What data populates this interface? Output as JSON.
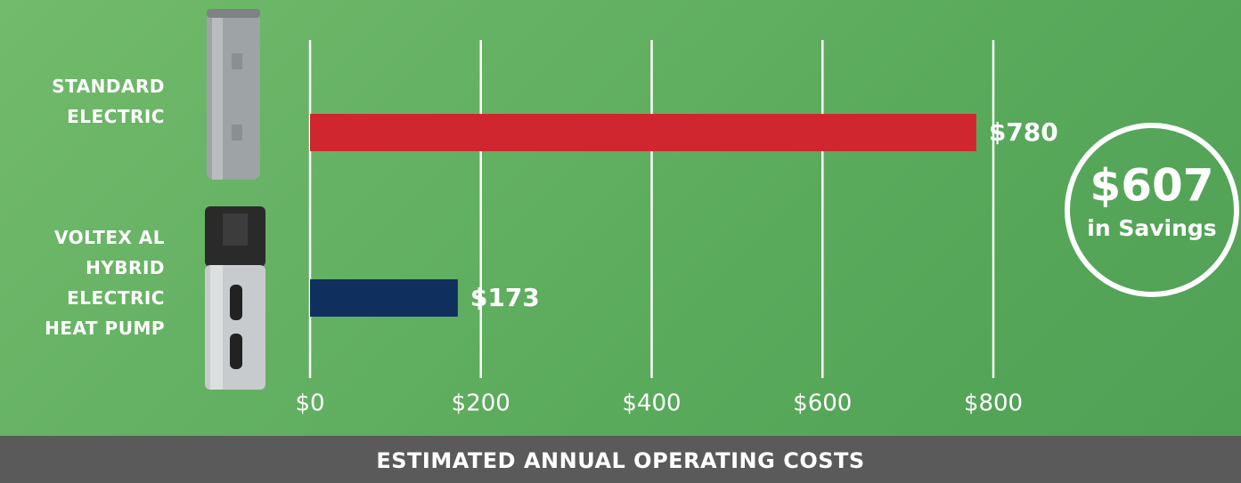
{
  "chart_data": {
    "type": "bar",
    "orientation": "horizontal",
    "categories": [
      "STANDARD ELECTRIC",
      "VOLTEX AL HYBRID ELECTRIC HEAT PUMP"
    ],
    "values": [
      780,
      173
    ],
    "value_labels": [
      "$780",
      "$173"
    ],
    "colors": [
      "#d0262f",
      "#0f2f5e"
    ],
    "xlim": [
      0,
      800
    ],
    "xticks": [
      {
        "value": 0,
        "label": "$0"
      },
      {
        "value": 200,
        "label": "$200"
      },
      {
        "value": 400,
        "label": "$400"
      },
      {
        "value": 600,
        "label": "$600"
      },
      {
        "value": 800,
        "label": "$800"
      }
    ],
    "grid": true,
    "xlabel": "ESTIMATED ANNUAL OPERATING COSTS",
    "annotation": {
      "amount": "$607",
      "text": "in Savings"
    }
  }
}
